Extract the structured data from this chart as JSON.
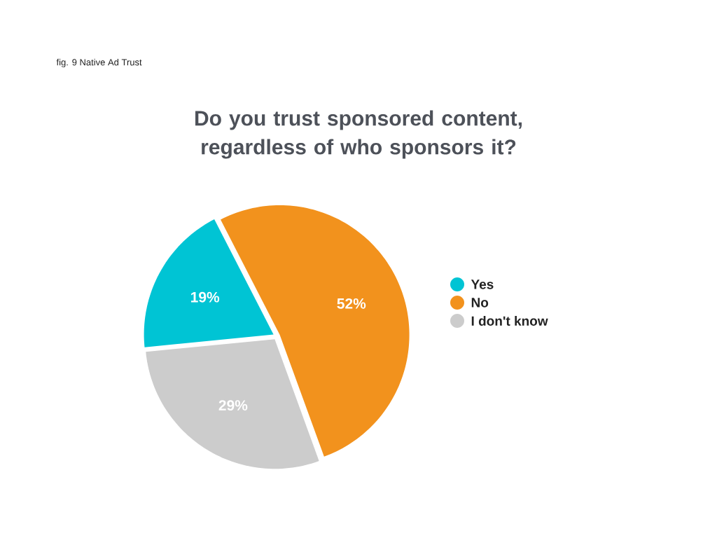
{
  "chart_data": {
    "type": "pie",
    "title": "Do you trust sponsored content,\nregardless of who sponsors it?",
    "annotations": [
      "fig. 9 Native Ad Trust"
    ],
    "categories": [
      "Yes",
      "No",
      "I don't know"
    ],
    "values": [
      19,
      52,
      29
    ],
    "colors": [
      "#00c4d4",
      "#f2921d",
      "#cccccc"
    ],
    "value_labels": [
      "19%",
      "52%",
      "29%"
    ],
    "legend": "right"
  }
}
